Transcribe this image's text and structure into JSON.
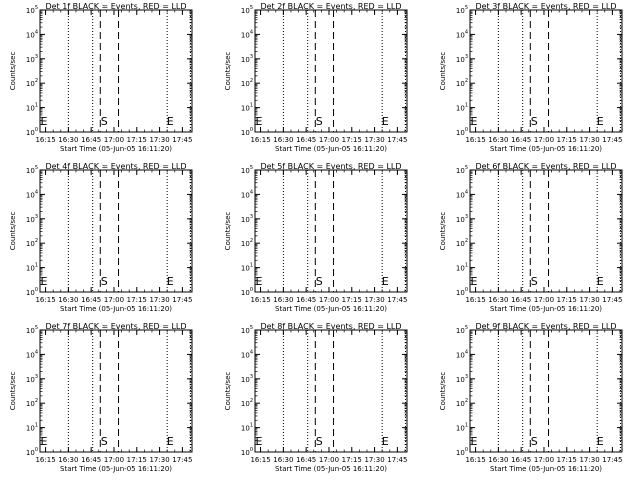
{
  "shared": {
    "xtick_labels": [
      "16:15",
      "16:30",
      "16:45",
      "17:00",
      "17:15",
      "17:30",
      "17:45"
    ],
    "ytick_labels": [
      {
        "base": "10",
        "exp": "0"
      },
      {
        "base": "10",
        "exp": "1"
      },
      {
        "base": "10",
        "exp": "2"
      },
      {
        "base": "10",
        "exp": "3"
      },
      {
        "base": "10",
        "exp": "4"
      },
      {
        "base": "10",
        "exp": "5"
      }
    ],
    "xlabel": "Start Time (05-Jun-05 16:11:20)",
    "ylabel": "Counts/sec",
    "start_marker": "S",
    "end_marker": "E"
  },
  "chart_data": [
    {
      "type": "line",
      "title": "Det 1f BLACK = Events, RED = LLD",
      "x_range": [
        "16:11:20",
        "17:51:20"
      ],
      "y_scale": "log",
      "ylim": [
        1,
        100000
      ],
      "series": [],
      "dotted_lines_at": [
        "16:30",
        "16:46",
        "17:35"
      ],
      "dashed_lines_at": [
        "16:51",
        "17:03"
      ],
      "start_label_at": "16:51",
      "end_label_at": "17:35"
    },
    {
      "type": "line",
      "title": "Det 2f BLACK = Events, RED = LLD",
      "x_range": [
        "16:11:20",
        "17:51:20"
      ],
      "y_scale": "log",
      "ylim": [
        1,
        100000
      ],
      "series": [],
      "dotted_lines_at": [
        "16:30",
        "16:46",
        "17:35"
      ],
      "dashed_lines_at": [
        "16:51",
        "17:03"
      ],
      "start_label_at": "16:51",
      "end_label_at": "17:35"
    },
    {
      "type": "line",
      "title": "Det 3f BLACK = Events, RED = LLD",
      "x_range": [
        "16:11:20",
        "17:51:20"
      ],
      "y_scale": "log",
      "ylim": [
        1,
        100000
      ],
      "series": [],
      "dotted_lines_at": [
        "16:30",
        "16:46",
        "17:35"
      ],
      "dashed_lines_at": [
        "16:51",
        "17:03"
      ],
      "start_label_at": "16:51",
      "end_label_at": "17:35"
    },
    {
      "type": "line",
      "title": "Det 4f BLACK = Events, RED = LLD",
      "x_range": [
        "16:11:20",
        "17:51:20"
      ],
      "y_scale": "log",
      "ylim": [
        1,
        100000
      ],
      "series": [],
      "dotted_lines_at": [
        "16:30",
        "16:46",
        "17:35"
      ],
      "dashed_lines_at": [
        "16:51",
        "17:03"
      ],
      "start_label_at": "16:51",
      "end_label_at": "17:35"
    },
    {
      "type": "line",
      "title": "Det 5f BLACK = Events, RED = LLD",
      "x_range": [
        "16:11:20",
        "17:51:20"
      ],
      "y_scale": "log",
      "ylim": [
        1,
        100000
      ],
      "series": [],
      "dotted_lines_at": [
        "16:30",
        "16:46",
        "17:35"
      ],
      "dashed_lines_at": [
        "16:51",
        "17:03"
      ],
      "start_label_at": "16:51",
      "end_label_at": "17:35"
    },
    {
      "type": "line",
      "title": "Det 6f BLACK = Events, RED = LLD",
      "x_range": [
        "16:11:20",
        "17:51:20"
      ],
      "y_scale": "log",
      "ylim": [
        1,
        100000
      ],
      "series": [],
      "dotted_lines_at": [
        "16:30",
        "16:46",
        "17:35"
      ],
      "dashed_lines_at": [
        "16:51",
        "17:03"
      ],
      "start_label_at": "16:51",
      "end_label_at": "17:35"
    },
    {
      "type": "line",
      "title": "Det 7f BLACK = Events, RED = LLD",
      "x_range": [
        "16:11:20",
        "17:51:20"
      ],
      "y_scale": "log",
      "ylim": [
        1,
        100000
      ],
      "series": [],
      "dotted_lines_at": [
        "16:30",
        "16:46",
        "17:35"
      ],
      "dashed_lines_at": [
        "16:51",
        "17:03"
      ],
      "start_label_at": "16:51",
      "end_label_at": "17:35"
    },
    {
      "type": "line",
      "title": "Det 8f BLACK = Events, RED = LLD",
      "x_range": [
        "16:11:20",
        "17:51:20"
      ],
      "y_scale": "log",
      "ylim": [
        1,
        100000
      ],
      "series": [],
      "dotted_lines_at": [
        "16:30",
        "16:46",
        "17:35"
      ],
      "dashed_lines_at": [
        "16:51",
        "17:03"
      ],
      "start_label_at": "16:51",
      "end_label_at": "17:35"
    },
    {
      "type": "line",
      "title": "Det 9f BLACK = Events, RED = LLD",
      "x_range": [
        "16:11:20",
        "17:51:20"
      ],
      "y_scale": "log",
      "ylim": [
        1,
        100000
      ],
      "series": [],
      "dotted_lines_at": [
        "16:30",
        "16:46",
        "17:35"
      ],
      "dashed_lines_at": [
        "16:51",
        "17:03"
      ],
      "start_label_at": "16:51",
      "end_label_at": "17:35"
    }
  ]
}
